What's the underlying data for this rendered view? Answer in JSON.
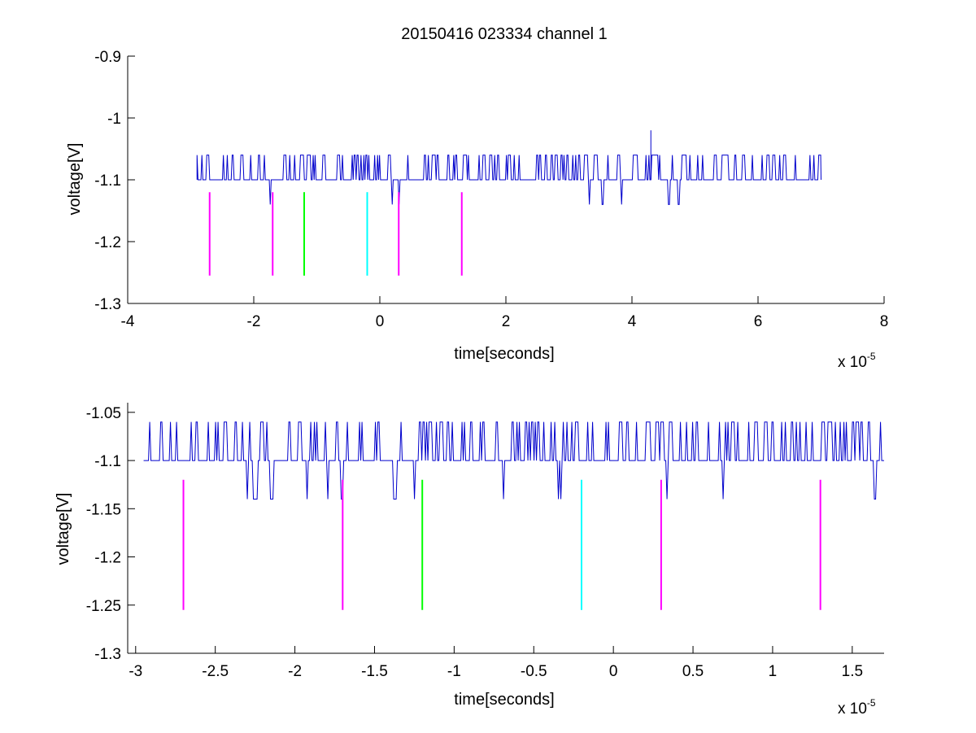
{
  "chart_data": [
    {
      "type": "line",
      "title": "20150416 023334 channel 1",
      "xlabel": "time[seconds]",
      "ylabel": "voltage[V]",
      "x_exponent_label": "x 10",
      "x_exponent_power": "-5",
      "xlim": [
        -4,
        8
      ],
      "ylim": [
        -1.3,
        -0.9
      ],
      "xticks": [
        -4,
        -2,
        0,
        2,
        4,
        6,
        8
      ],
      "xtick_labels": [
        "-4",
        "-2",
        "0",
        "2",
        "4",
        "6",
        "8"
      ],
      "yticks": [
        -0.9,
        -1,
        -1.1,
        -1.2,
        -1.3
      ],
      "ytick_labels": [
        "-0.9",
        "-1",
        "-1.1",
        "-1.2",
        "-1.3"
      ],
      "grid": false,
      "series": [
        {
          "color": "#0000cc",
          "x_range": [
            -2.9,
            7.0
          ],
          "baseline": -1.1,
          "levels": [
            -1.06,
            -1.1,
            -1.14
          ],
          "spike": {
            "x": 4.3,
            "y": -1.02
          }
        }
      ],
      "markers": [
        {
          "x": -2.7,
          "y_top": -1.12,
          "y_bottom": -1.255,
          "color": "#ff00ff"
        },
        {
          "x": -1.7,
          "y_top": -1.12,
          "y_bottom": -1.255,
          "color": "#ff00ff"
        },
        {
          "x": -1.2,
          "y_top": -1.12,
          "y_bottom": -1.255,
          "color": "#00ff00"
        },
        {
          "x": -0.2,
          "y_top": -1.12,
          "y_bottom": -1.255,
          "color": "#00ffff"
        },
        {
          "x": 0.3,
          "y_top": -1.12,
          "y_bottom": -1.255,
          "color": "#ff00ff"
        },
        {
          "x": 1.3,
          "y_top": -1.12,
          "y_bottom": -1.255,
          "color": "#ff00ff"
        }
      ]
    },
    {
      "type": "line",
      "title": "",
      "xlabel": "time[seconds]",
      "ylabel": "voltage[V]",
      "x_exponent_label": "x 10",
      "x_exponent_power": "-5",
      "xlim": [
        -3.05,
        1.7
      ],
      "ylim": [
        -1.3,
        -1.04
      ],
      "xticks": [
        -3,
        -2.5,
        -2,
        -1.5,
        -1,
        -0.5,
        0,
        0.5,
        1,
        1.5
      ],
      "xtick_labels": [
        "-3",
        "-2.5",
        "-2",
        "-1.5",
        "-1",
        "-0.5",
        "0",
        "0.5",
        "1",
        "1.5"
      ],
      "yticks": [
        -1.05,
        -1.1,
        -1.15,
        -1.2,
        -1.25,
        -1.3
      ],
      "ytick_labels": [
        "-1.05",
        "-1.1",
        "-1.15",
        "-1.2",
        "-1.25",
        "-1.3"
      ],
      "grid": false,
      "series": [
        {
          "color": "#0000cc",
          "x_range": [
            -2.95,
            1.7
          ],
          "baseline": -1.1,
          "levels": [
            -1.06,
            -1.1,
            -1.14
          ]
        }
      ],
      "markers": [
        {
          "x": -2.7,
          "y_top": -1.12,
          "y_bottom": -1.255,
          "color": "#ff00ff"
        },
        {
          "x": -1.7,
          "y_top": -1.12,
          "y_bottom": -1.255,
          "color": "#ff00ff"
        },
        {
          "x": -1.2,
          "y_top": -1.12,
          "y_bottom": -1.255,
          "color": "#00ff00"
        },
        {
          "x": -0.2,
          "y_top": -1.12,
          "y_bottom": -1.255,
          "color": "#00ffff"
        },
        {
          "x": 0.3,
          "y_top": -1.12,
          "y_bottom": -1.255,
          "color": "#ff00ff"
        },
        {
          "x": 1.3,
          "y_top": -1.12,
          "y_bottom": -1.255,
          "color": "#ff00ff"
        }
      ]
    }
  ]
}
